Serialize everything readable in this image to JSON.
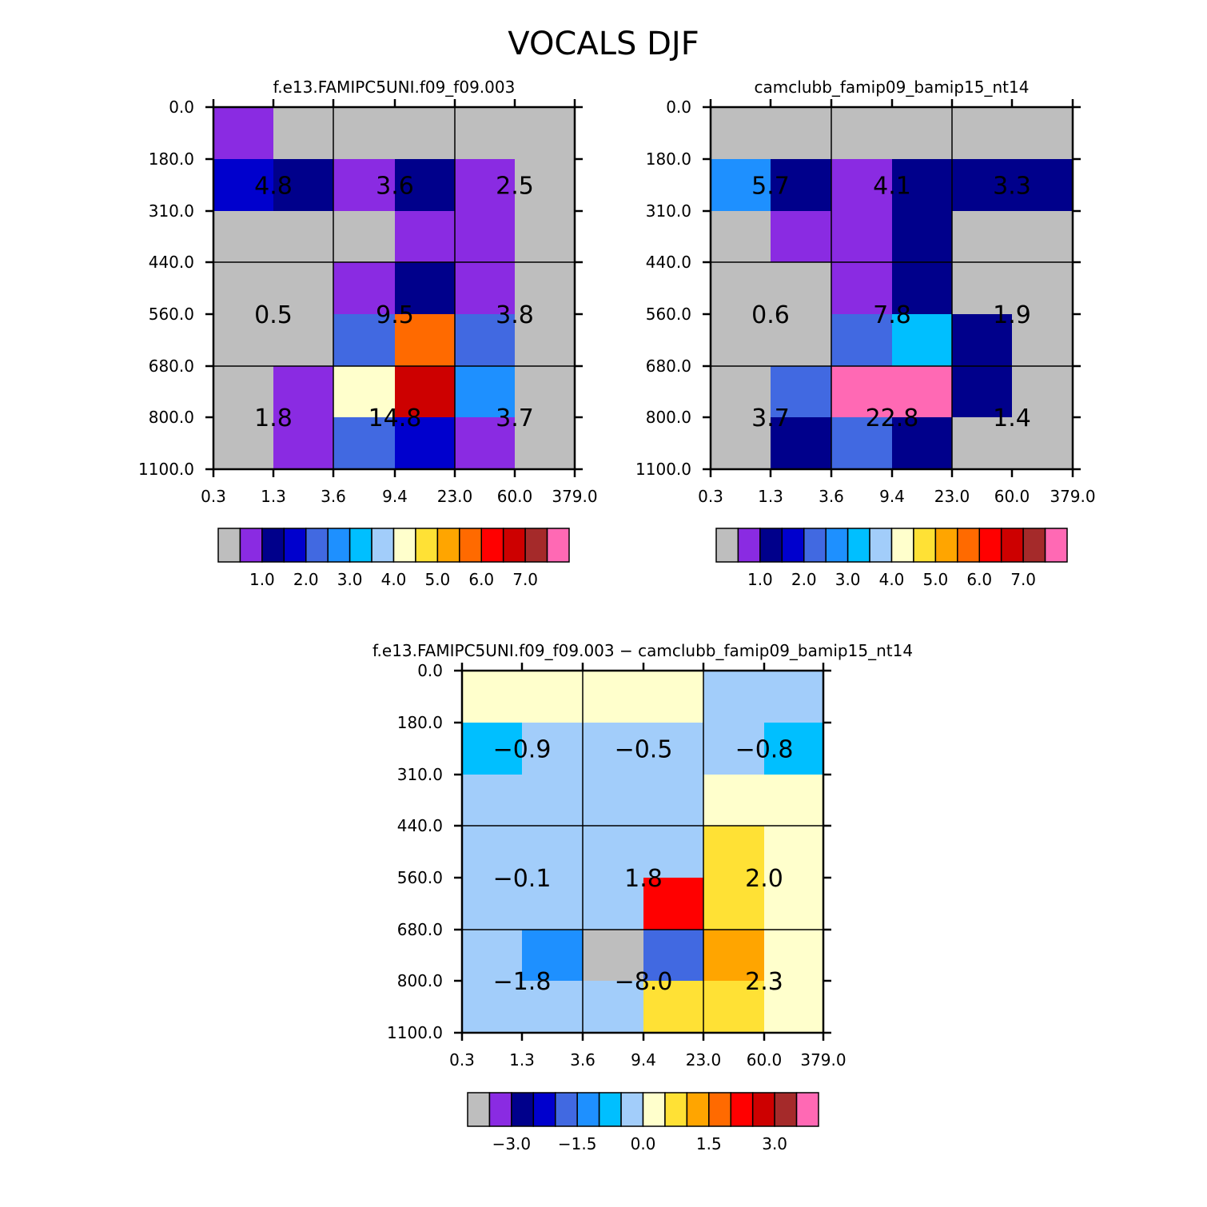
{
  "title": "VOCALS DJF",
  "colors": {
    "palette": [
      "#bebebe",
      "#8a2be2",
      "#00008b",
      "#0000cd",
      "#4169e1",
      "#1e90ff",
      "#00bfff",
      "#a2cdfa",
      "#ffffcc",
      "#ffe135",
      "#ffa500",
      "#ff6a00",
      "#ff0000",
      "#cd0000",
      "#a52a2a",
      "#ff69b4"
    ]
  },
  "chart_data": [
    {
      "type": "heatmap",
      "name": "panel-model-a",
      "title": "f.e13.FAMIPC5UNI.f09_f09.003",
      "xticks": [
        "0.3",
        "1.3",
        "3.6",
        "9.4",
        "23.0",
        "60.0",
        "379.0"
      ],
      "yticks": [
        "0.0",
        "180.0",
        "310.0",
        "440.0",
        "560.0",
        "680.0",
        "800.0",
        "1100.0"
      ],
      "cells": [
        [
          1,
          0,
          0,
          0,
          0,
          0
        ],
        [
          3,
          2,
          1,
          2,
          1,
          0
        ],
        [
          0,
          0,
          0,
          1,
          1,
          0
        ],
        [
          0,
          0,
          1,
          2,
          1,
          0
        ],
        [
          0,
          0,
          4,
          11,
          4,
          0
        ],
        [
          0,
          1,
          8,
          13,
          5,
          0
        ],
        [
          0,
          1,
          4,
          3,
          1,
          0
        ]
      ],
      "block_labels": [
        [
          "4.8",
          "3.6",
          "2.5"
        ],
        [
          "0.5",
          "9.5",
          "3.8"
        ],
        [
          "1.8",
          "14.8",
          "3.7"
        ]
      ],
      "colorbar": {
        "labels": [
          "1.0",
          "2.0",
          "3.0",
          "4.0",
          "5.0",
          "6.0",
          "7.0"
        ],
        "label_after_box": [
          2,
          4,
          6,
          8,
          10,
          12,
          14
        ]
      }
    },
    {
      "type": "heatmap",
      "name": "panel-model-b",
      "title": "camclubb_famip09_bamip15_nt14",
      "xticks": [
        "0.3",
        "1.3",
        "3.6",
        "9.4",
        "23.0",
        "60.0",
        "379.0"
      ],
      "yticks": [
        "0.0",
        "180.0",
        "310.0",
        "440.0",
        "560.0",
        "680.0",
        "800.0",
        "1100.0"
      ],
      "cells": [
        [
          0,
          0,
          0,
          0,
          0,
          0
        ],
        [
          5,
          2,
          1,
          2,
          2,
          2
        ],
        [
          0,
          1,
          1,
          2,
          0,
          0
        ],
        [
          0,
          0,
          1,
          2,
          0,
          0
        ],
        [
          0,
          0,
          4,
          6,
          2,
          0
        ],
        [
          0,
          4,
          15,
          15,
          2,
          0
        ],
        [
          0,
          2,
          4,
          2,
          0,
          0
        ]
      ],
      "block_labels": [
        [
          "5.7",
          "4.1",
          "3.3"
        ],
        [
          "0.6",
          "7.8",
          "1.9"
        ],
        [
          "3.7",
          "22.8",
          "1.4"
        ]
      ],
      "colorbar": {
        "labels": [
          "1.0",
          "2.0",
          "3.0",
          "4.0",
          "5.0",
          "6.0",
          "7.0"
        ],
        "label_after_box": [
          2,
          4,
          6,
          8,
          10,
          12,
          14
        ]
      }
    },
    {
      "type": "heatmap",
      "name": "panel-difference",
      "title": "f.e13.FAMIPC5UNI.f09_f09.003 − camclubb_famip09_bamip15_nt14",
      "xticks": [
        "0.3",
        "1.3",
        "3.6",
        "9.4",
        "23.0",
        "60.0",
        "379.0"
      ],
      "yticks": [
        "0.0",
        "180.0",
        "310.0",
        "440.0",
        "560.0",
        "680.0",
        "800.0",
        "1100.0"
      ],
      "cells": [
        [
          8,
          8,
          8,
          8,
          7,
          7
        ],
        [
          6,
          7,
          7,
          7,
          7,
          6
        ],
        [
          7,
          7,
          7,
          7,
          8,
          8
        ],
        [
          7,
          7,
          7,
          7,
          9,
          8
        ],
        [
          7,
          7,
          7,
          12,
          9,
          8
        ],
        [
          7,
          5,
          0,
          4,
          10,
          8
        ],
        [
          7,
          7,
          7,
          9,
          9,
          8
        ]
      ],
      "block_labels": [
        [
          "−0.9",
          "−0.5",
          "−0.8"
        ],
        [
          "−0.1",
          "1.8",
          "2.0"
        ],
        [
          "−1.8",
          "−8.0",
          "2.3"
        ]
      ],
      "colorbar": {
        "labels": [
          "−3.0",
          "−1.5",
          "0.0",
          "1.5",
          "3.0"
        ],
        "label_after_box": [
          2,
          5,
          8,
          11,
          14
        ]
      }
    }
  ]
}
